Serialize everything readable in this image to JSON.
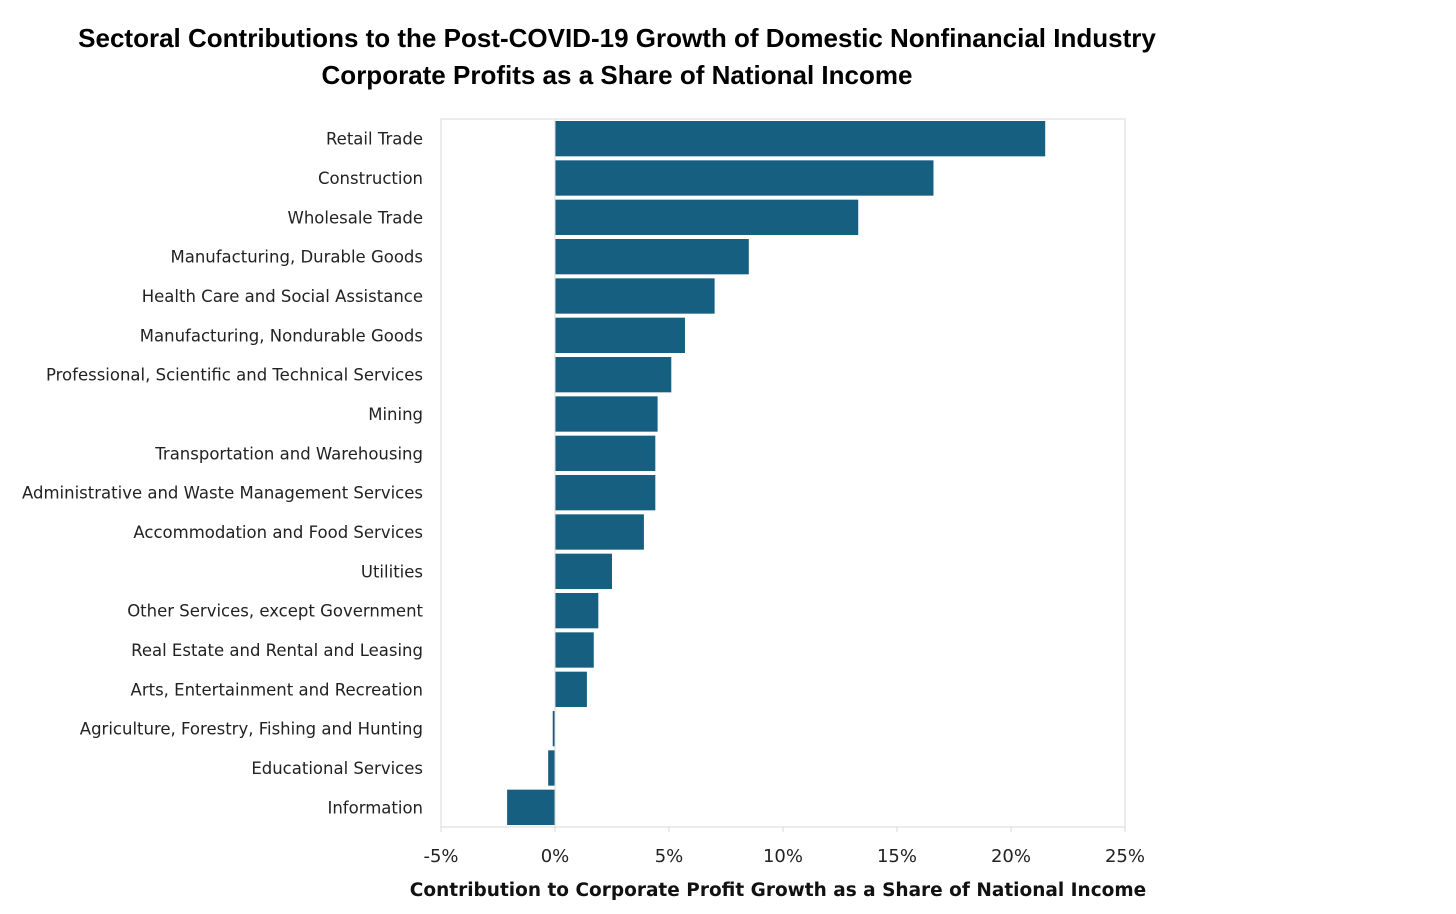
{
  "chart_data": {
    "type": "bar",
    "orientation": "horizontal",
    "title": "Sectoral Contributions to the Post-COVID-19 Growth of Domestic Nonfinancial Industry Corporate Profits as a Share of National Income",
    "title_lines": [
      "Sectoral Contributions to the Post-COVID-19 Growth of Domestic Nonfinancial Industry",
      "Corporate Profits as a Share of National Income"
    ],
    "xlabel": "Contribution to Corporate Profit Growth as a Share of National Income",
    "ylabel": "",
    "xlim": [
      -5,
      25
    ],
    "xticks": [
      -5,
      0,
      5,
      10,
      15,
      20,
      25
    ],
    "xtick_labels": [
      "-5%",
      "0%",
      "5%",
      "10%",
      "15%",
      "20%",
      "25%"
    ],
    "grid": false,
    "bar_color": "#175f80",
    "categories": [
      "Retail Trade",
      "Construction",
      "Wholesale Trade",
      "Manufacturing, Durable Goods",
      "Health Care and Social Assistance",
      "Manufacturing, Nondurable Goods",
      "Professional, Scientific and Technical Services",
      "Mining",
      "Transportation and Warehousing",
      "Administrative and Waste Management Services",
      "Accommodation and Food Services",
      "Utilities",
      "Other Services, except Government",
      "Real Estate and Rental and Leasing",
      "Arts, Entertainment and Recreation",
      "Agriculture, Forestry, Fishing and Hunting",
      "Educational Services",
      "Information"
    ],
    "values": [
      21.5,
      16.6,
      13.3,
      8.5,
      7.0,
      5.7,
      5.1,
      4.5,
      4.4,
      4.4,
      3.9,
      2.5,
      1.9,
      1.7,
      1.4,
      -0.1,
      -0.3,
      -2.1
    ],
    "units": "percent"
  }
}
